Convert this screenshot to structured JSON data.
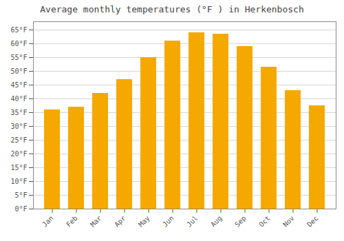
{
  "chart_data": {
    "type": "bar",
    "title": "Average monthly temperatures (°F ) in Herkenbosch",
    "categories": [
      "Jan",
      "Feb",
      "Mar",
      "Apr",
      "May",
      "Jun",
      "Jul",
      "Aug",
      "Sep",
      "Oct",
      "Nov",
      "Dec"
    ],
    "values": [
      36,
      37,
      42,
      47,
      55,
      61,
      64,
      63.5,
      59,
      51.5,
      43,
      37.5
    ],
    "color": "#F5A800",
    "ylim": [
      0,
      68
    ],
    "yticks": [
      {
        "value": 0,
        "label": "0°F"
      },
      {
        "value": 5,
        "label": "5°F"
      },
      {
        "value": 10,
        "label": "10°F"
      },
      {
        "value": 15,
        "label": "15°F"
      },
      {
        "value": 20,
        "label": "20°F"
      },
      {
        "value": 25,
        "label": "25°F"
      },
      {
        "value": 30,
        "label": "30°F"
      },
      {
        "value": 35,
        "label": "35°F"
      },
      {
        "value": 40,
        "label": "40°F"
      },
      {
        "value": 45,
        "label": "45°F"
      },
      {
        "value": 50,
        "label": "50°F"
      },
      {
        "value": 55,
        "label": "55°F"
      },
      {
        "value": 60,
        "label": "60°F"
      },
      {
        "value": 65,
        "label": "65°F"
      }
    ],
    "grid": true
  }
}
